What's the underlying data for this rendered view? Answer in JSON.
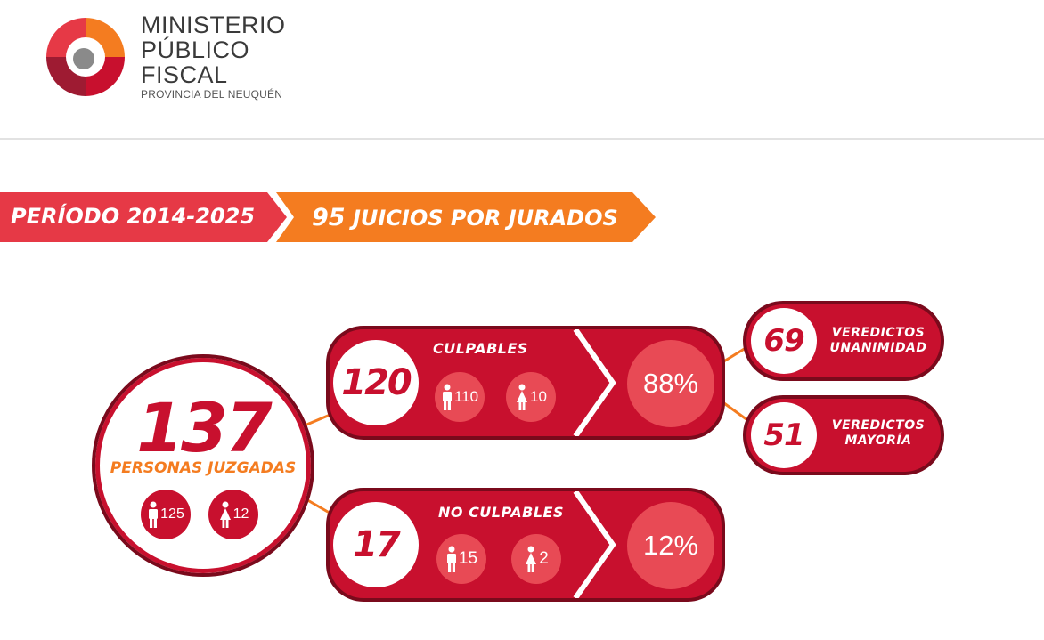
{
  "header": {
    "org_lines": [
      "MINISTERIO",
      "PÚBLICO",
      "FISCAL"
    ],
    "org_sub": "PROVINCIA DEL NEUQUÉN"
  },
  "banner": {
    "period": "PERÍODO 2014-2025",
    "trials_count": "95",
    "trials_label": "JUICIOS POR JURADOS"
  },
  "total": {
    "count": "137",
    "label": "PERSONAS JUZGADAS",
    "men": "125",
    "women": "12"
  },
  "guilty": {
    "count": "120",
    "label": "CULPABLES",
    "men": "110",
    "women": "10",
    "percent": "88%"
  },
  "not_guilty": {
    "count": "17",
    "label": "NO CULPABLES",
    "men": "15",
    "women": "2",
    "percent": "12%"
  },
  "verdicts": [
    {
      "count": "69",
      "line1": "VEREDICTOS",
      "line2": "UNANIMIDAD"
    },
    {
      "count": "51",
      "line1": "VEREDICTOS",
      "line2": "MAYORÍA"
    }
  ],
  "colors": {
    "red": "#c8102e",
    "dark_red": "#7a0a1c",
    "orange": "#f47c20",
    "pink": "#e84a55",
    "banner_red": "#e63946"
  }
}
